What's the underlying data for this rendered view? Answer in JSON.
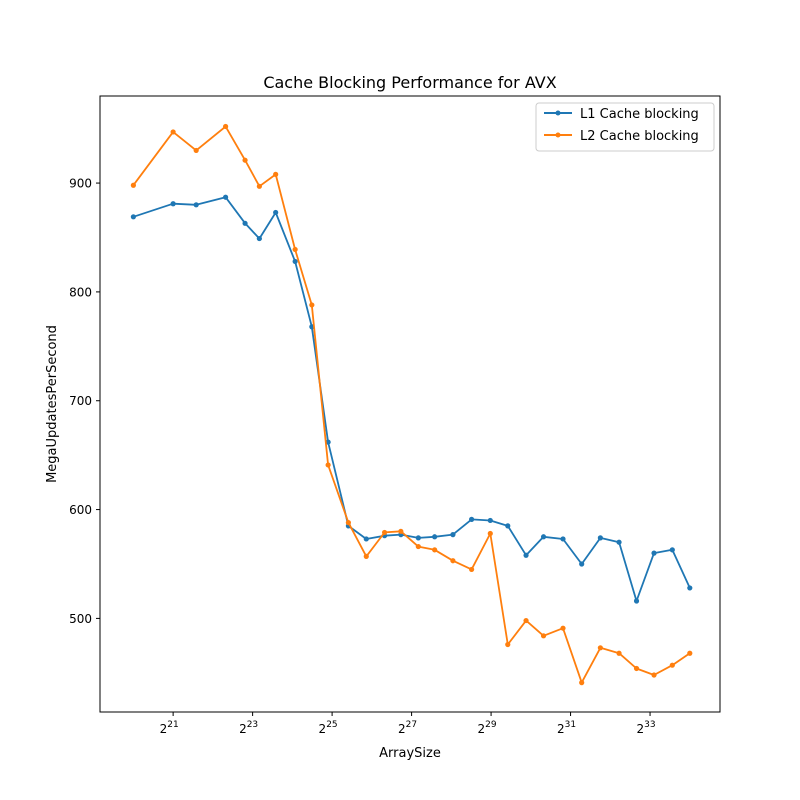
{
  "chart_data": {
    "type": "line",
    "title": "Cache Blocking Performance for AVX",
    "xlabel": "ArraySize",
    "ylabel": "MegaUpdatesPerSecond",
    "x_scale": "log2",
    "xlim_log2": [
      19.16,
      34.76
    ],
    "ylim": [
      414,
      980
    ],
    "x_tick_exponents": [
      "21",
      "23",
      "25",
      "27",
      "29",
      "31",
      "33"
    ],
    "x_tick_base": "2",
    "y_ticks": [
      500,
      600,
      700,
      800,
      900
    ],
    "grid": false,
    "legend_position": "top-right",
    "x_log2": [
      20.0,
      21.0,
      21.58,
      22.32,
      22.81,
      23.17,
      23.58,
      24.07,
      24.49,
      24.9,
      25.41,
      25.86,
      26.32,
      26.73,
      27.17,
      27.58,
      28.04,
      28.51,
      28.98,
      29.42,
      29.88,
      30.32,
      30.81,
      31.28,
      31.75,
      32.22,
      32.66,
      33.1,
      33.56,
      34.0
    ],
    "series": [
      {
        "name": "L1 Cache blocking",
        "color": "#1f77b4",
        "values": [
          869,
          881,
          880,
          887,
          863,
          849,
          873,
          828,
          768,
          662,
          585,
          573,
          576,
          577,
          574,
          575,
          577,
          591,
          590,
          585,
          558,
          575,
          573,
          550,
          574,
          570,
          516,
          560,
          563,
          528
        ]
      },
      {
        "name": "L2 Cache blocking",
        "color": "#ff7f0e",
        "values": [
          898,
          947,
          930,
          952,
          921,
          897,
          908,
          839,
          788,
          641,
          588,
          557,
          579,
          580,
          566,
          563,
          553,
          545,
          578,
          476,
          498,
          484,
          491,
          441,
          473,
          468,
          454,
          448,
          457,
          468
        ]
      }
    ]
  }
}
